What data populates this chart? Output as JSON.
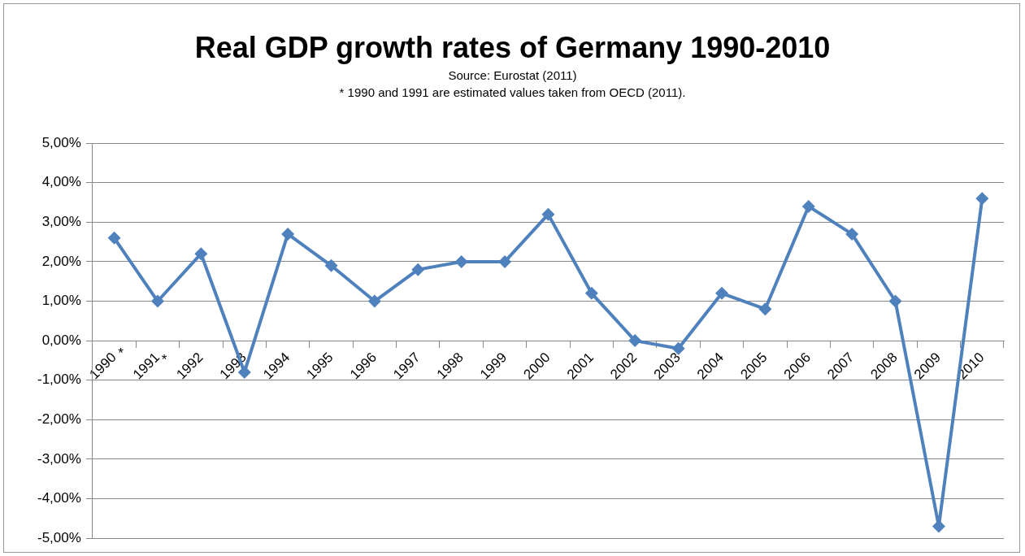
{
  "chart_data": {
    "type": "line",
    "title": "Real GDP growth rates of Germany 1990-2010",
    "annotations": [
      "Source: Eurostat (2011)",
      "* 1990 and 1991 are estimated values taken from OECD (2011).",
      "*",
      "*"
    ],
    "categories": [
      "1990",
      "1991",
      "1992",
      "1993",
      "1994",
      "1995",
      "1996",
      "1997",
      "1998",
      "1999",
      "2000",
      "2001",
      "2002",
      "2003",
      "2004",
      "2005",
      "2006",
      "2007",
      "2008",
      "2009",
      "2010"
    ],
    "series": [
      {
        "color": "#4f81bd",
        "values": [
          2.6,
          1.0,
          2.2,
          -0.8,
          2.7,
          1.9,
          1.0,
          1.8,
          2.0,
          2.0,
          3.2,
          1.2,
          0.0,
          -0.2,
          1.2,
          0.8,
          3.4,
          2.7,
          1.0,
          -4.7,
          3.6
        ]
      }
    ],
    "ylim": [
      -5,
      5
    ],
    "yticks": [
      {
        "value": -5,
        "label": "-5,00%"
      },
      {
        "value": -4,
        "label": "-4,00%"
      },
      {
        "value": -3,
        "label": "-3,00%"
      },
      {
        "value": -2,
        "label": "-2,00%"
      },
      {
        "value": -1,
        "label": "-1,00%"
      },
      {
        "value": 0,
        "label": "0,00%"
      },
      {
        "value": 1,
        "label": "1,00%"
      },
      {
        "value": 2,
        "label": "2,00%"
      },
      {
        "value": 3,
        "label": "3,00%"
      },
      {
        "value": 4,
        "label": "4,00%"
      },
      {
        "value": 5,
        "label": "5,00%"
      }
    ],
    "grid": "y",
    "marker": "diamond",
    "line_style": "solid",
    "legend": false
  }
}
